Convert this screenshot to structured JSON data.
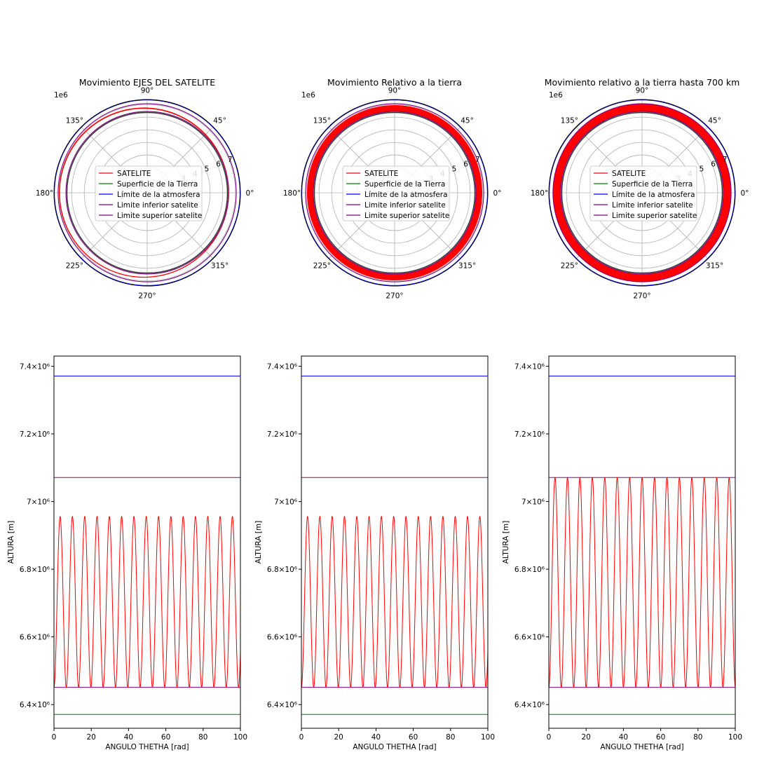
{
  "chart_data": [
    {
      "type": "polar",
      "title": "Movimiento EJES DEL SATELITE",
      "offset_label": "1e6",
      "angle_ticks": [
        "0°",
        "45°",
        "90°",
        "135°",
        "180°",
        "225°",
        "270°",
        "315°"
      ],
      "radial_ticks": [
        "3",
        "4",
        "5",
        "6",
        "7"
      ],
      "legend_placement": "center",
      "series": [
        {
          "name": "SATELITE",
          "color": "#ff0000",
          "r_min": 6.451,
          "r_max": 6.956,
          "pattern": "ellipse"
        },
        {
          "name": "Superficie de la Tierra",
          "color": "#008000",
          "r": 6.371
        },
        {
          "name": "Límite de la atmosfera",
          "color": "#0000ff",
          "r": 7.371
        },
        {
          "name": "Limite inferior satelite",
          "color": "#800080",
          "r": 6.451
        },
        {
          "name": "Limite superior satelite",
          "color": "#800080",
          "r": 7.071
        }
      ]
    },
    {
      "type": "polar",
      "title": "Movimiento Relativo a la tierra",
      "offset_label": "1e6",
      "angle_ticks": [
        "0°",
        "45°",
        "90°",
        "135°",
        "180°",
        "225°",
        "270°",
        "315°"
      ],
      "radial_ticks": [
        "3",
        "4",
        "5",
        "6",
        "7"
      ],
      "legend_placement": "center",
      "series": [
        {
          "name": "SATELITE",
          "color": "#ff0000",
          "r_min": 6.451,
          "r_max": 6.956,
          "pattern": "band"
        },
        {
          "name": "Superficie de la Tierra",
          "color": "#008000",
          "r": 6.371
        },
        {
          "name": "Límite de la atmosfera",
          "color": "#0000ff",
          "r": 7.371
        },
        {
          "name": "Limite inferior satelite",
          "color": "#800080",
          "r": 6.451
        },
        {
          "name": "Limite superior satelite",
          "color": "#800080",
          "r": 7.071
        }
      ]
    },
    {
      "type": "polar",
      "title": "Movimiento relativo a la tierra hasta 700 km",
      "offset_label": "1e6",
      "angle_ticks": [
        "0°",
        "45°",
        "90°",
        "135°",
        "180°",
        "225°",
        "270°",
        "315°"
      ],
      "radial_ticks": [
        "3",
        "4",
        "5",
        "6",
        "7"
      ],
      "legend_placement": "center",
      "series": [
        {
          "name": "SATELITE",
          "color": "#ff0000",
          "r_min": 6.451,
          "r_max": 7.071,
          "pattern": "band"
        },
        {
          "name": "Superficie de la Tierra",
          "color": "#008000",
          "r": 6.371
        },
        {
          "name": "Límite de la atmosfera",
          "color": "#0000ff",
          "r": 7.371
        },
        {
          "name": "Limite inferior satelite",
          "color": "#800080",
          "r": 6.451
        },
        {
          "name": "Limite superior satelite",
          "color": "#800080",
          "r": 7.071
        }
      ]
    },
    {
      "type": "line",
      "xlabel": "ANGULO THETHA [rad]",
      "ylabel": "ALTURA [m]",
      "xlim": [
        0,
        100
      ],
      "ylim": [
        6330000,
        7430000
      ],
      "xticks": [
        0,
        20,
        40,
        60,
        80,
        100
      ],
      "yticks": [
        6400000,
        6600000,
        6800000,
        7000000,
        7200000,
        7400000
      ],
      "ytick_labels": [
        "6.4×10⁶",
        "6.6×10⁶",
        "6.8×10⁶",
        "7×10⁶",
        "7.2×10⁶",
        "7.4×10⁶"
      ],
      "oscillation": {
        "series": "SATELITE",
        "color": "#ff0000",
        "y_min": 6451000,
        "y_max": 6956000,
        "period": 6.6,
        "phase": "min_at_0"
      },
      "hlines": [
        {
          "y": 7371000,
          "color": "#0000ff"
        },
        {
          "y": 7071000,
          "color": "#800080"
        },
        {
          "y": 6451000,
          "color": "#800080"
        },
        {
          "y": 6371000,
          "color": "#008000"
        }
      ]
    },
    {
      "type": "line",
      "xlabel": "ANGULO THETHA [rad]",
      "ylabel": "ALTURA [m]",
      "xlim": [
        0,
        100
      ],
      "ylim": [
        6330000,
        7430000
      ],
      "xticks": [
        0,
        20,
        40,
        60,
        80,
        100
      ],
      "yticks": [
        6400000,
        6600000,
        6800000,
        7000000,
        7200000,
        7400000
      ],
      "ytick_labels": [
        "6.4×10⁶",
        "6.6×10⁶",
        "6.8×10⁶",
        "7×10⁶",
        "7.2×10⁶",
        "7.4×10⁶"
      ],
      "oscillation": {
        "series": "SATELITE",
        "color": "#ff0000",
        "y_min": 6451000,
        "y_max": 6956000,
        "period": 6.6,
        "phase": "min_at_0"
      },
      "hlines": [
        {
          "y": 7371000,
          "color": "#0000ff"
        },
        {
          "y": 7071000,
          "color": "#800080"
        },
        {
          "y": 6451000,
          "color": "#800080"
        },
        {
          "y": 6371000,
          "color": "#008000"
        }
      ]
    },
    {
      "type": "line",
      "xlabel": "ANGULO THETHA [rad]",
      "ylabel": "ALTURA [m]",
      "xlim": [
        0,
        100
      ],
      "ylim": [
        6330000,
        7430000
      ],
      "xticks": [
        0,
        20,
        40,
        60,
        80,
        100
      ],
      "yticks": [
        6400000,
        6600000,
        6800000,
        7000000,
        7200000,
        7400000
      ],
      "ytick_labels": [
        "6.4×10⁶",
        "6.6×10⁶",
        "6.8×10⁶",
        "7×10⁶",
        "7.2×10⁶",
        "7.4×10⁶"
      ],
      "oscillation": {
        "series": "SATELITE",
        "color": "#ff0000",
        "y_min": 6451000,
        "y_max": 7071000,
        "period": 6.67,
        "phase": "min_at_0"
      },
      "hlines": [
        {
          "y": 7371000,
          "color": "#0000ff"
        },
        {
          "y": 7071000,
          "color": "#800080"
        },
        {
          "y": 6451000,
          "color": "#800080"
        },
        {
          "y": 6371000,
          "color": "#008000"
        }
      ]
    }
  ]
}
